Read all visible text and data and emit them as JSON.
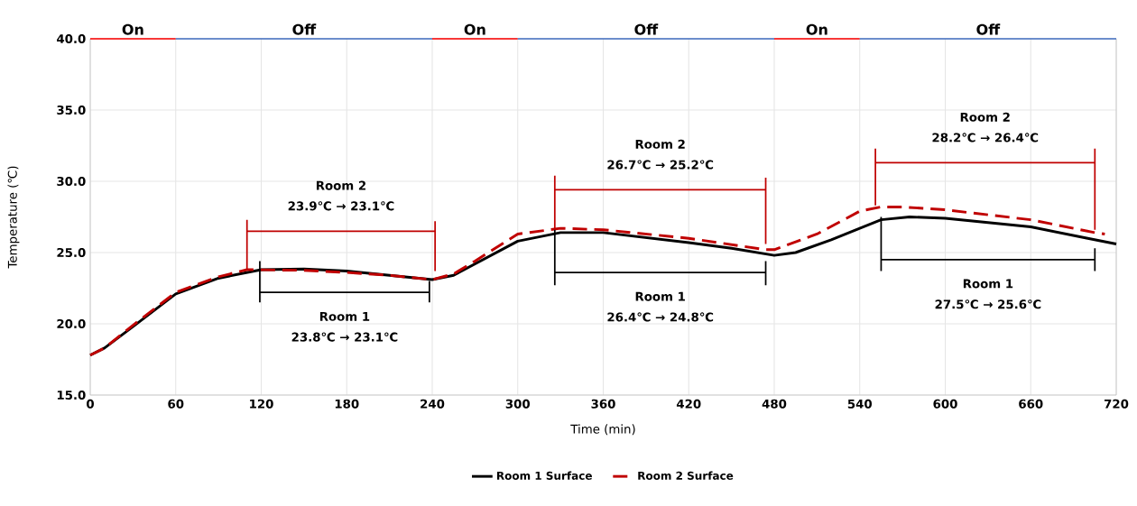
{
  "chart_data": {
    "type": "line",
    "xlabel": "Time (min)",
    "ylabel": "Temperature (℃)",
    "xlim": [
      0,
      720
    ],
    "xticks": [
      0,
      60,
      120,
      180,
      240,
      300,
      360,
      420,
      480,
      540,
      600,
      660,
      720
    ],
    "ylim": [
      15,
      40
    ],
    "yticks": [
      {
        "value": 15,
        "label": "15.0"
      },
      {
        "value": 20,
        "label": "20.0"
      },
      {
        "value": 25,
        "label": "25.0"
      },
      {
        "value": 30,
        "label": "30.0"
      },
      {
        "value": 35,
        "label": "35.0"
      },
      {
        "value": 40,
        "label": "40.0"
      }
    ],
    "grid": true,
    "legend": "bottom",
    "marker": "none",
    "series": [
      {
        "name": "Room 1 Surface",
        "color": "#000000",
        "line_style": "solid",
        "x": [
          0,
          10,
          30,
          60,
          90,
          120,
          150,
          180,
          210,
          240,
          255,
          270,
          300,
          330,
          360,
          420,
          450,
          480,
          495,
          520,
          555,
          575,
          600,
          660,
          700,
          720
        ],
        "values": [
          17.8,
          18.3,
          19.8,
          22.1,
          23.2,
          23.8,
          23.85,
          23.7,
          23.4,
          23.1,
          23.4,
          24.2,
          25.8,
          26.4,
          26.4,
          25.7,
          25.3,
          24.8,
          25.0,
          25.9,
          27.3,
          27.5,
          27.4,
          26.8,
          26.0,
          25.6
        ]
      },
      {
        "name": "Room 2 Surface",
        "color": "#c00000",
        "line_style": "dashed",
        "x": [
          0,
          10,
          30,
          60,
          90,
          110,
          150,
          180,
          210,
          240,
          255,
          270,
          300,
          330,
          360,
          420,
          474,
          480,
          510,
          540,
          555,
          570,
          600,
          660,
          705,
          712
        ],
        "values": [
          17.8,
          18.3,
          19.9,
          22.2,
          23.3,
          23.8,
          23.75,
          23.6,
          23.4,
          23.1,
          23.5,
          24.4,
          26.3,
          26.7,
          26.6,
          26.0,
          25.2,
          25.2,
          26.3,
          27.9,
          28.2,
          28.2,
          28.0,
          27.3,
          26.4,
          26.3
        ]
      },
      {
        "color": "#ff0000",
        "x": [
          0,
          60
        ],
        "values": [
          40,
          40
        ]
      },
      {
        "color": "#4472c4",
        "x": [
          60,
          240
        ],
        "values": [
          40,
          40
        ]
      },
      {
        "color": "#ff0000",
        "x": [
          240,
          300
        ],
        "values": [
          40,
          40
        ]
      },
      {
        "color": "#4472c4",
        "x": [
          300,
          480
        ],
        "values": [
          40,
          40
        ]
      },
      {
        "color": "#ff0000",
        "x": [
          480,
          540
        ],
        "values": [
          40,
          40
        ]
      },
      {
        "color": "#4472c4",
        "x": [
          540,
          720
        ],
        "values": [
          40,
          40
        ]
      },
      {
        "color": "#000000",
        "x": [
          238,
          238,
          null,
          119,
          119,
          null,
          119,
          238
        ],
        "values": [
          23.0,
          21.5,
          null,
          24.4,
          21.5,
          null,
          22.2,
          22.2
        ]
      },
      {
        "color": "#c00000",
        "x": [
          242,
          242,
          null,
          110,
          110,
          null,
          110,
          242
        ],
        "values": [
          27.2,
          23.7,
          null,
          27.3,
          23.8,
          null,
          26.5,
          26.5
        ]
      },
      {
        "color": "#000000",
        "x": [
          474,
          474,
          null,
          326,
          326,
          null,
          326,
          474
        ],
        "values": [
          24.4,
          22.7,
          null,
          26.6,
          22.7,
          null,
          23.6,
          23.6
        ]
      },
      {
        "color": "#c00000",
        "x": [
          474,
          474,
          null,
          326,
          326,
          null,
          326,
          474
        ],
        "values": [
          30.25,
          25.6,
          null,
          30.4,
          26.6,
          null,
          29.4,
          29.4
        ]
      },
      {
        "color": "#000000",
        "x": [
          705,
          705,
          null,
          555,
          555,
          null,
          555,
          705
        ],
        "values": [
          25.3,
          23.7,
          null,
          27.5,
          23.7,
          null,
          24.5,
          24.5
        ]
      },
      {
        "color": "#c00000",
        "x": [
          705,
          705,
          null,
          551,
          551,
          null,
          551,
          705
        ],
        "values": [
          32.3,
          26.6,
          null,
          32.3,
          28.3,
          null,
          31.3,
          31.3
        ]
      }
    ],
    "annotations": [
      "On",
      "Off",
      "On",
      "Off",
      "On",
      "Off",
      "Room 1",
      "23.8℃ → 23.1℃",
      "Room 2",
      "23.9℃ → 23.1℃",
      "Room 1",
      "26.4℃ → 24.8℃",
      "Room 2",
      "26.7℃ → 25.2℃",
      "Room 1",
      "27.5℃ → 25.6℃",
      "Room 2",
      "28.2℃ → 26.4℃"
    ]
  }
}
